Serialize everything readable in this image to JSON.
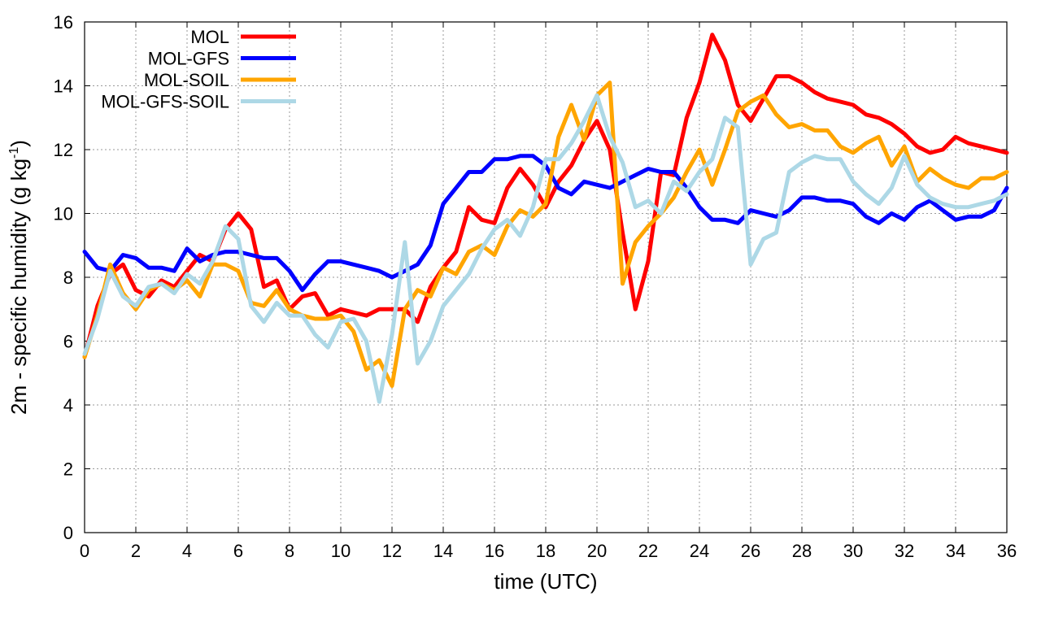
{
  "chart_data": {
    "type": "line",
    "xlabel": "time (UTC)",
    "ylabel": {
      "main": "2m - specific humidity (g kg",
      "sup": "-1",
      "close": ")"
    },
    "xlim": [
      0,
      36
    ],
    "ylim": [
      0,
      16
    ],
    "xticks": [
      "0",
      "2",
      "4",
      "6",
      "8",
      "10",
      "12",
      "14",
      "16",
      "18",
      "20",
      "22",
      "24",
      "26",
      "28",
      "30",
      "32",
      "34",
      "36"
    ],
    "yticks": [
      "0",
      "2",
      "4",
      "6",
      "8",
      "10",
      "12",
      "14",
      "16"
    ],
    "grid": true,
    "legend_position": "top-left",
    "series": [
      {
        "name": "MOL",
        "color": "#ff0000",
        "x": [
          0,
          0.5,
          1,
          1.5,
          2,
          2.5,
          3,
          3.5,
          4,
          4.5,
          5,
          5.5,
          6,
          6.5,
          7,
          7.5,
          8,
          8.5,
          9,
          9.5,
          10,
          10.5,
          11,
          11.5,
          12,
          12.5,
          13,
          13.5,
          14,
          14.5,
          15,
          15.5,
          16,
          16.5,
          17,
          17.5,
          18,
          18.5,
          19,
          19.5,
          20,
          20.5,
          21,
          21.5,
          22,
          22.5,
          23,
          23.5,
          24,
          24.5,
          25,
          25.5,
          26,
          26.5,
          27,
          27.5,
          28,
          28.5,
          29,
          29.5,
          30,
          30.5,
          31,
          31.5,
          32,
          32.5,
          33,
          33.5,
          34,
          34.5,
          35,
          35.5,
          36
        ],
        "y": [
          5.5,
          7.1,
          8.1,
          8.4,
          7.6,
          7.4,
          7.9,
          7.7,
          8.2,
          8.7,
          8.5,
          9.5,
          10.0,
          9.5,
          7.7,
          7.9,
          7.0,
          7.4,
          7.5,
          6.8,
          7.0,
          6.9,
          6.8,
          7.0,
          7.0,
          7.0,
          6.6,
          7.7,
          8.3,
          8.8,
          10.2,
          9.8,
          9.7,
          10.8,
          11.4,
          10.9,
          10.2,
          11.0,
          11.5,
          12.3,
          12.9,
          12.0,
          9.4,
          7.0,
          8.5,
          11.3,
          11.2,
          13.0,
          14.1,
          15.6,
          14.8,
          13.4,
          12.9,
          13.6,
          14.3,
          14.3,
          14.1,
          13.8,
          13.6,
          13.5,
          13.4,
          13.1,
          13.0,
          12.8,
          12.5,
          12.1,
          11.9,
          12.0,
          12.4,
          12.2,
          12.1,
          12.0,
          11.9
        ]
      },
      {
        "name": "MOL-GFS",
        "color": "#0000ff",
        "x": [
          0,
          0.5,
          1,
          1.5,
          2,
          2.5,
          3,
          3.5,
          4,
          4.5,
          5,
          5.5,
          6,
          6.5,
          7,
          7.5,
          8,
          8.5,
          9,
          9.5,
          10,
          10.5,
          11,
          11.5,
          12,
          12.5,
          13,
          13.5,
          14,
          14.5,
          15,
          15.5,
          16,
          16.5,
          17,
          17.5,
          18,
          18.5,
          19,
          19.5,
          20,
          20.5,
          21,
          21.5,
          22,
          22.5,
          23,
          23.5,
          24,
          24.5,
          25,
          25.5,
          26,
          26.5,
          27,
          27.5,
          28,
          28.5,
          29,
          29.5,
          30,
          30.5,
          31,
          31.5,
          32,
          32.5,
          33,
          33.5,
          34,
          34.5,
          35,
          35.5,
          36
        ],
        "y": [
          8.8,
          8.3,
          8.2,
          8.7,
          8.6,
          8.3,
          8.3,
          8.2,
          8.9,
          8.5,
          8.7,
          8.8,
          8.8,
          8.7,
          8.6,
          8.6,
          8.2,
          7.6,
          8.1,
          8.5,
          8.5,
          8.4,
          8.3,
          8.2,
          8.0,
          8.2,
          8.4,
          9.0,
          10.3,
          10.8,
          11.3,
          11.3,
          11.7,
          11.7,
          11.8,
          11.8,
          11.5,
          10.8,
          10.6,
          11.0,
          10.9,
          10.8,
          11.0,
          11.2,
          11.4,
          11.3,
          11.3,
          10.8,
          10.2,
          9.8,
          9.8,
          9.7,
          10.1,
          10.0,
          9.9,
          10.1,
          10.5,
          10.5,
          10.4,
          10.4,
          10.3,
          9.9,
          9.7,
          10.0,
          9.8,
          10.2,
          10.4,
          10.1,
          9.8,
          9.9,
          9.9,
          10.1,
          10.8
        ]
      },
      {
        "name": "MOL-SOIL",
        "color": "#ffa500",
        "x": [
          0,
          0.5,
          1,
          1.5,
          2,
          2.5,
          3,
          3.5,
          4,
          4.5,
          5,
          5.5,
          6,
          6.5,
          7,
          7.5,
          8,
          8.5,
          9,
          9.5,
          10,
          10.5,
          11,
          11.5,
          12,
          12.5,
          13,
          13.5,
          14,
          14.5,
          15,
          15.5,
          16,
          16.5,
          17,
          17.5,
          18,
          18.5,
          19,
          19.5,
          20,
          20.5,
          21,
          21.5,
          22,
          22.5,
          23,
          23.5,
          24,
          24.5,
          25,
          25.5,
          26,
          26.5,
          27,
          27.5,
          28,
          28.5,
          29,
          29.5,
          30,
          30.5,
          31,
          31.5,
          32,
          32.5,
          33,
          33.5,
          34,
          34.5,
          35,
          35.5,
          36
        ],
        "y": [
          5.5,
          6.8,
          8.4,
          7.5,
          7.0,
          7.6,
          7.8,
          7.6,
          7.9,
          7.4,
          8.4,
          8.4,
          8.2,
          7.2,
          7.1,
          7.6,
          7.0,
          6.8,
          6.7,
          6.7,
          6.8,
          6.3,
          5.1,
          5.4,
          4.6,
          7.0,
          7.6,
          7.4,
          8.3,
          8.1,
          8.8,
          9.0,
          8.7,
          9.6,
          10.1,
          9.9,
          10.3,
          12.4,
          13.4,
          12.3,
          13.7,
          14.1,
          7.8,
          9.1,
          9.6,
          10.0,
          10.5,
          11.3,
          12.0,
          10.9,
          12.0,
          13.2,
          13.5,
          13.7,
          13.1,
          12.7,
          12.8,
          12.6,
          12.6,
          12.1,
          11.9,
          12.2,
          12.4,
          11.5,
          12.1,
          11.0,
          11.4,
          11.1,
          10.9,
          10.8,
          11.1,
          11.1,
          11.3
        ]
      },
      {
        "name": "MOL-GFS-SOIL",
        "color": "#add8e6",
        "x": [
          0,
          0.5,
          1,
          1.5,
          2,
          2.5,
          3,
          3.5,
          4,
          4.5,
          5,
          5.5,
          6,
          6.5,
          7,
          7.5,
          8,
          8.5,
          9,
          9.5,
          10,
          10.5,
          11,
          11.5,
          12,
          12.5,
          13,
          13.5,
          14,
          14.5,
          15,
          15.5,
          16,
          16.5,
          17,
          17.5,
          18,
          18.5,
          19,
          19.5,
          20,
          20.5,
          21,
          21.5,
          22,
          22.5,
          23,
          23.5,
          24,
          24.5,
          25,
          25.5,
          26,
          26.5,
          27,
          27.5,
          28,
          28.5,
          29,
          29.5,
          30,
          30.5,
          31,
          31.5,
          32,
          32.5,
          33,
          33.5,
          34,
          34.5,
          35,
          35.5,
          36
        ],
        "y": [
          5.6,
          6.7,
          8.2,
          7.4,
          7.1,
          7.7,
          7.8,
          7.5,
          8.1,
          7.8,
          8.5,
          9.6,
          9.2,
          7.1,
          6.6,
          7.2,
          6.8,
          6.8,
          6.2,
          5.8,
          6.6,
          6.7,
          6.0,
          4.1,
          6.2,
          9.1,
          5.3,
          6.0,
          7.1,
          7.6,
          8.1,
          8.9,
          9.5,
          9.8,
          9.3,
          10.2,
          11.7,
          11.7,
          12.2,
          12.9,
          13.7,
          12.4,
          11.6,
          10.2,
          10.4,
          10.0,
          11.0,
          10.7,
          11.3,
          11.7,
          13.0,
          12.7,
          8.4,
          9.2,
          9.4,
          11.3,
          11.6,
          11.8,
          11.7,
          11.7,
          11.0,
          10.6,
          10.3,
          10.8,
          11.8,
          10.9,
          10.5,
          10.3,
          10.2,
          10.2,
          10.3,
          10.4,
          10.6
        ]
      }
    ]
  }
}
